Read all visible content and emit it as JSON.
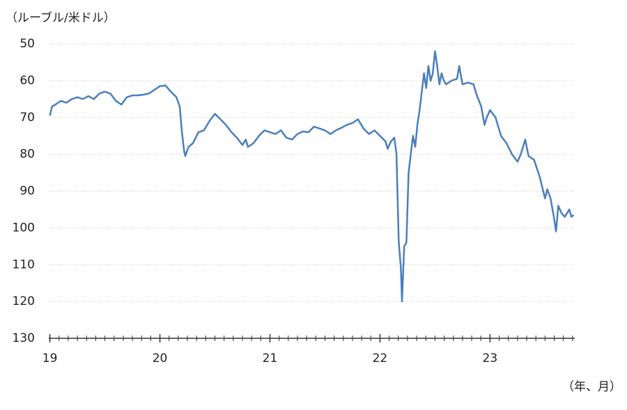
{
  "chart_data": {
    "type": "line",
    "y_axis_label": "（ルーブル/米ドル）",
    "x_axis_label": "（年、月）",
    "x": [
      19.0,
      19.02,
      19.05,
      19.1,
      19.15,
      19.2,
      19.25,
      19.3,
      19.35,
      19.4,
      19.45,
      19.5,
      19.55,
      19.6,
      19.65,
      19.7,
      19.75,
      19.8,
      19.85,
      19.9,
      19.95,
      20.0,
      20.05,
      20.1,
      20.15,
      20.18,
      20.2,
      20.22,
      20.23,
      20.26,
      20.3,
      20.35,
      20.4,
      20.45,
      20.5,
      20.55,
      20.6,
      20.65,
      20.7,
      20.75,
      20.78,
      20.8,
      20.85,
      20.9,
      20.95,
      21.0,
      21.05,
      21.1,
      21.15,
      21.2,
      21.25,
      21.3,
      21.35,
      21.4,
      21.45,
      21.5,
      21.55,
      21.6,
      21.65,
      21.7,
      21.75,
      21.8,
      21.85,
      21.9,
      21.95,
      22.0,
      22.05,
      22.07,
      22.1,
      22.13,
      22.15,
      22.17,
      22.19,
      22.2,
      22.22,
      22.24,
      22.26,
      22.28,
      22.3,
      22.32,
      22.34,
      22.36,
      22.38,
      22.4,
      22.42,
      22.44,
      22.46,
      22.48,
      22.5,
      22.52,
      22.54,
      22.56,
      22.58,
      22.6,
      22.65,
      22.7,
      22.72,
      22.75,
      22.8,
      22.85,
      22.88,
      22.92,
      22.95,
      22.97,
      23.0,
      23.05,
      23.1,
      23.15,
      23.2,
      23.25,
      23.28,
      23.32,
      23.35,
      23.4,
      23.45,
      23.5,
      23.52,
      23.55,
      23.58,
      23.6,
      23.62,
      23.65,
      23.68,
      23.7,
      23.72,
      23.74,
      23.76
    ],
    "series": [
      {
        "color": "#4a7ebb",
        "values": [
          69.5,
          67,
          66.5,
          65.5,
          66,
          65,
          64.5,
          65,
          64.2,
          65,
          63.5,
          63,
          63.5,
          65.5,
          66.5,
          64.5,
          64,
          64,
          63.8,
          63.5,
          62.5,
          61.5,
          61.3,
          63,
          64.5,
          67,
          74,
          79,
          80.5,
          78,
          77,
          74,
          73.5,
          71,
          69,
          70.5,
          72,
          74,
          75.5,
          77.5,
          76,
          78,
          77,
          75,
          73.5,
          74,
          74.5,
          73.5,
          75.5,
          76,
          74.5,
          73.8,
          74,
          72.5,
          73,
          73.5,
          74.5,
          73.5,
          72.8,
          72,
          71.5,
          70.5,
          73,
          74.5,
          73.5,
          75,
          76.5,
          78.5,
          76.5,
          75.5,
          80,
          103.5,
          111,
          120,
          105,
          104,
          85,
          80,
          75,
          78,
          72,
          68,
          63,
          58,
          62,
          56,
          60,
          58,
          52,
          56,
          61,
          58,
          60,
          61,
          60,
          59.5,
          56,
          61,
          60.5,
          61,
          64,
          67,
          72,
          70,
          68,
          70,
          75,
          77,
          80,
          82,
          80,
          76,
          80.5,
          81.5,
          86,
          92,
          89.5,
          92,
          97,
          101,
          94,
          96,
          97,
          96,
          95,
          97,
          96.5
        ]
      }
    ],
    "xlim": [
      18.99,
      23.77
    ],
    "xticks": [
      19,
      20,
      21,
      22,
      23
    ],
    "ylim": [
      50,
      130
    ],
    "yticks": [
      50,
      60,
      70,
      80,
      90,
      100,
      110,
      120,
      130
    ],
    "y_inverted": true,
    "grid": true
  }
}
